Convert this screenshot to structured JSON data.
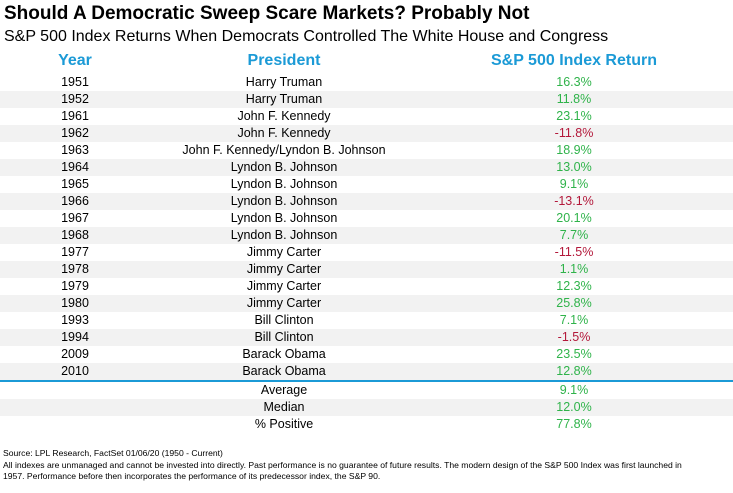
{
  "title": "Should A Democratic Sweep Scare Markets? Probably Not",
  "subtitle": "S&P 500 Index Returns When Democrats Controlled The White House and Congress",
  "colors": {
    "header": "#1b9ad6",
    "positive": "#2fb34a",
    "negative": "#b3183a",
    "shade": "#f2f2f2"
  },
  "chart_data": {
    "type": "table",
    "columns": [
      "Year",
      "President",
      "S&P 500 Index Return"
    ],
    "rows": [
      {
        "year": "1951",
        "president": "Harry Truman",
        "return": "16.3%",
        "value": 16.3
      },
      {
        "year": "1952",
        "president": "Harry Truman",
        "return": "11.8%",
        "value": 11.8
      },
      {
        "year": "1961",
        "president": "John F. Kennedy",
        "return": "23.1%",
        "value": 23.1
      },
      {
        "year": "1962",
        "president": "John F. Kennedy",
        "return": "-11.8%",
        "value": -11.8
      },
      {
        "year": "1963",
        "president": "John F. Kennedy/Lyndon B. Johnson",
        "return": "18.9%",
        "value": 18.9
      },
      {
        "year": "1964",
        "president": "Lyndon B. Johnson",
        "return": "13.0%",
        "value": 13.0
      },
      {
        "year": "1965",
        "president": "Lyndon B. Johnson",
        "return": "9.1%",
        "value": 9.1
      },
      {
        "year": "1966",
        "president": "Lyndon B. Johnson",
        "return": "-13.1%",
        "value": -13.1
      },
      {
        "year": "1967",
        "president": "Lyndon B. Johnson",
        "return": "20.1%",
        "value": 20.1
      },
      {
        "year": "1968",
        "president": "Lyndon B. Johnson",
        "return": "7.7%",
        "value": 7.7
      },
      {
        "year": "1977",
        "president": "Jimmy Carter",
        "return": "-11.5%",
        "value": -11.5
      },
      {
        "year": "1978",
        "president": "Jimmy Carter",
        "return": "1.1%",
        "value": 1.1
      },
      {
        "year": "1979",
        "president": "Jimmy Carter",
        "return": "12.3%",
        "value": 12.3
      },
      {
        "year": "1980",
        "president": "Jimmy Carter",
        "return": "25.8%",
        "value": 25.8
      },
      {
        "year": "1993",
        "president": "Bill Clinton",
        "return": "7.1%",
        "value": 7.1
      },
      {
        "year": "1994",
        "president": "Bill Clinton",
        "return": "-1.5%",
        "value": -1.5
      },
      {
        "year": "2009",
        "president": "Barack Obama",
        "return": "23.5%",
        "value": 23.5
      },
      {
        "year": "2010",
        "president": "Barack Obama",
        "return": "12.8%",
        "value": 12.8
      }
    ],
    "summary": [
      {
        "label": "Average",
        "return": "9.1%"
      },
      {
        "label": "Median",
        "return": "12.0%"
      },
      {
        "label": "% Positive",
        "return": "77.8%"
      }
    ]
  },
  "footer": {
    "source": "Source: LPL Research, FactSet 01/06/20 (1950 - Current)",
    "disclaimer_1": "All indexes are unmanaged and cannot be invested into directly. Past performance is no guarantee of future results. The modern design of the S&P 500 Index was first launched in",
    "disclaimer_2": "1957. Performance before then incorporates the performance of its  predecessor index, the S&P 90."
  }
}
